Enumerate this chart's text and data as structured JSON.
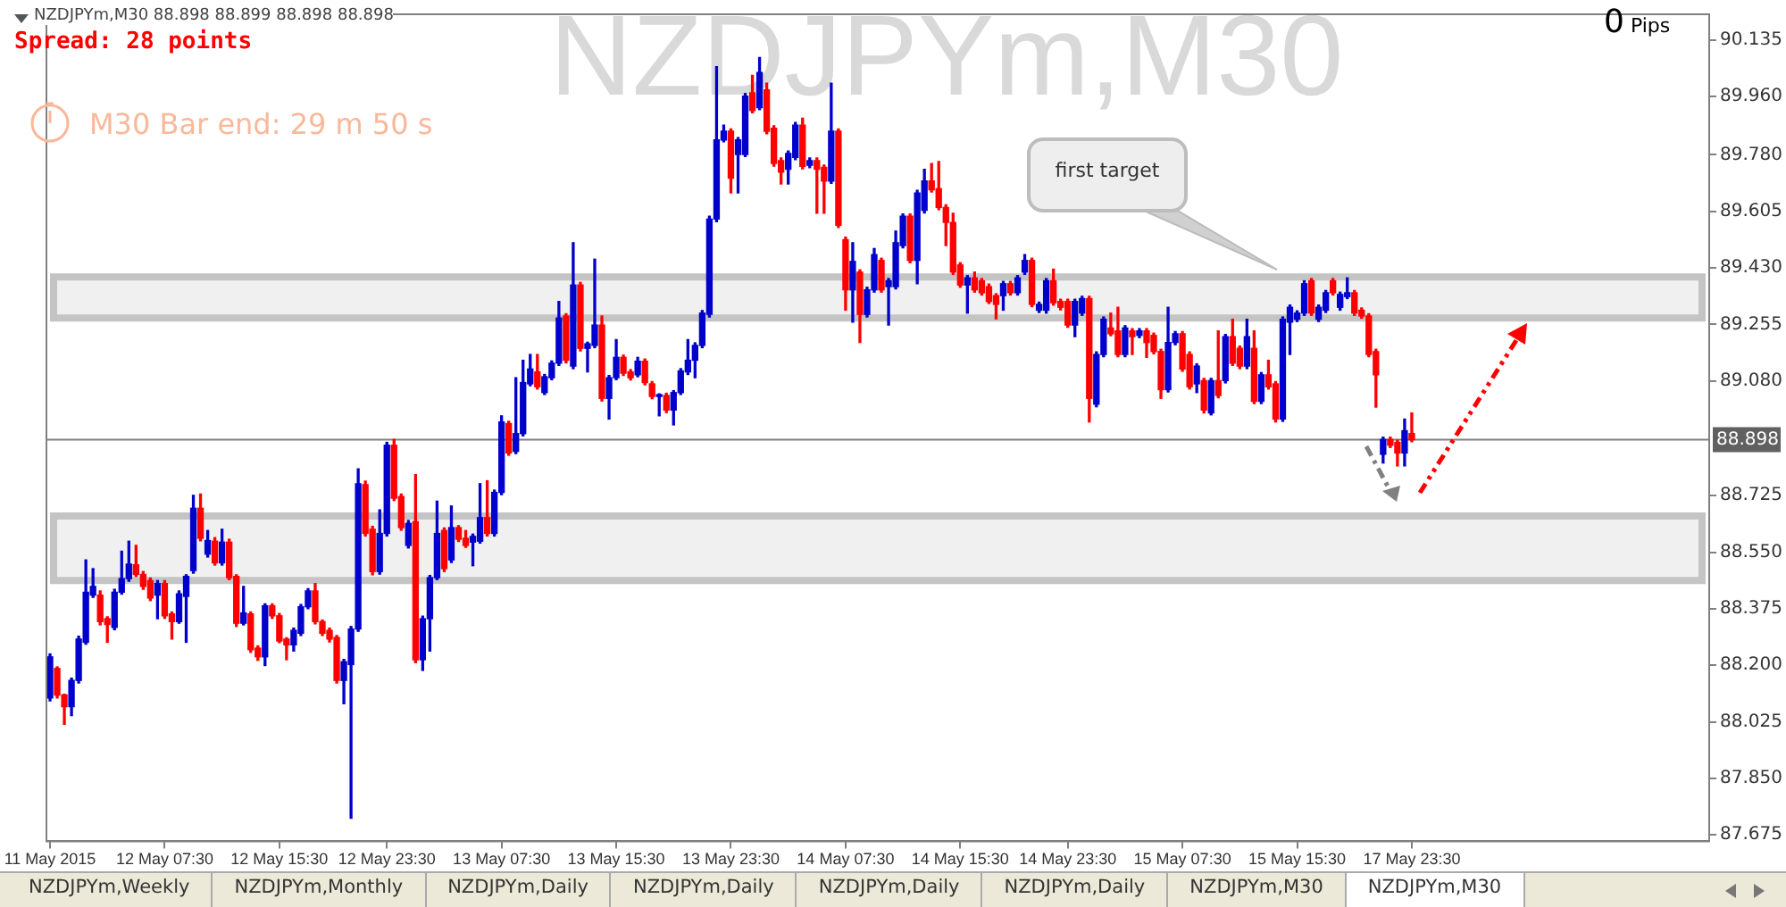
{
  "chart_data": {
    "type": "candlestick",
    "title": "NZDJPYm,M30 88.898 88.899 88.898 88.898",
    "subtitle": "NZDJPYm,M30",
    "categories": [
      "11 May 2015",
      null,
      null,
      null,
      null,
      null,
      null,
      null,
      null,
      null,
      null,
      null,
      null,
      null,
      null,
      null,
      "12 May 07:30",
      null,
      null,
      null,
      null,
      null,
      null,
      null,
      null,
      null,
      null,
      null,
      null,
      null,
      null,
      null,
      "12 May 15:30",
      null,
      null,
      null,
      null,
      null,
      null,
      null,
      null,
      null,
      null,
      null,
      null,
      null,
      null,
      "12 May 23:30",
      null,
      null,
      null,
      null,
      null,
      null,
      null,
      null,
      null,
      null,
      null,
      null,
      null,
      null,
      null,
      "13 May 07:30",
      null,
      null,
      null,
      null,
      null,
      null,
      null,
      null,
      null,
      null,
      null,
      null,
      null,
      null,
      null,
      "13 May 15:30",
      null,
      null,
      null,
      null,
      null,
      null,
      null,
      null,
      null,
      null,
      null,
      null,
      null,
      null,
      null,
      "13 May 23:30",
      null,
      null,
      null,
      null,
      null,
      null,
      null,
      null,
      null,
      null,
      null,
      null,
      null,
      null,
      null,
      "14 May 07:30",
      null,
      null,
      null,
      null,
      null,
      null,
      null,
      null,
      null,
      null,
      null,
      null,
      null,
      null,
      null,
      "14 May 15:30",
      null,
      null,
      null,
      null,
      null,
      null,
      null,
      null,
      null,
      null,
      null,
      null,
      null,
      null,
      "14 May 23:30",
      null,
      null,
      null,
      null,
      null,
      null,
      null,
      null,
      null,
      null,
      null,
      null,
      null,
      null,
      null,
      "15 May 07:30",
      null,
      null,
      null,
      null,
      null,
      null,
      null,
      null,
      null,
      null,
      null,
      null,
      null,
      null,
      null,
      "15 May 15:30",
      null,
      null,
      null,
      null,
      null,
      null,
      null,
      null,
      null,
      null,
      null,
      null,
      null,
      null,
      null,
      "17 May 23:30",
      null,
      null,
      null,
      null,
      null,
      null,
      null,
      null,
      null,
      null,
      null,
      null,
      null,
      null,
      null,
      null,
      null,
      null,
      null,
      null,
      null,
      null,
      null,
      null,
      null,
      null,
      null,
      null,
      null,
      null,
      null,
      null,
      null,
      null,
      null,
      null,
      null,
      null,
      null,
      null,
      null
    ],
    "ohlc": [
      [
        88.099,
        88.235,
        88.09,
        88.226
      ],
      [
        88.19,
        88.195,
        88.099,
        88.108
      ],
      [
        88.108,
        88.11,
        88.017,
        88.072
      ],
      [
        88.072,
        88.16,
        88.044,
        88.153
      ],
      [
        88.153,
        88.29,
        88.145,
        88.281
      ],
      [
        88.271,
        88.526,
        88.265,
        88.426
      ],
      [
        88.417,
        88.499,
        88.41,
        88.444
      ],
      [
        88.417,
        88.43,
        88.325,
        88.335
      ],
      [
        88.344,
        88.35,
        88.271,
        88.326
      ],
      [
        88.317,
        88.435,
        88.31,
        88.426
      ],
      [
        88.426,
        88.553,
        88.42,
        88.468
      ],
      [
        88.468,
        88.584,
        88.46,
        88.513
      ],
      [
        88.511,
        88.571,
        88.475,
        88.481
      ],
      [
        88.481,
        88.49,
        88.435,
        88.444
      ],
      [
        88.462,
        88.47,
        88.4,
        88.408
      ],
      [
        88.417,
        88.462,
        88.344,
        88.453
      ],
      [
        88.453,
        88.462,
        88.345,
        88.353
      ],
      [
        88.359,
        88.365,
        88.281,
        88.335
      ],
      [
        88.335,
        88.43,
        88.33,
        88.421
      ],
      [
        88.413,
        88.48,
        88.271,
        88.475
      ],
      [
        88.493,
        88.726,
        88.485,
        88.686
      ],
      [
        88.686,
        88.73,
        88.585,
        88.593
      ],
      [
        88.544,
        88.617,
        88.535,
        88.586
      ],
      [
        88.584,
        88.595,
        88.51,
        88.517
      ],
      [
        88.517,
        88.621,
        88.51,
        88.581
      ],
      [
        88.581,
        88.59,
        88.465,
        88.471
      ],
      [
        88.475,
        88.48,
        88.32,
        88.33
      ],
      [
        88.33,
        88.444,
        88.325,
        88.362
      ],
      [
        88.359,
        88.365,
        88.24,
        88.248
      ],
      [
        88.253,
        88.26,
        88.215,
        88.226
      ],
      [
        88.226,
        88.39,
        88.199,
        88.384
      ],
      [
        88.384,
        88.39,
        88.345,
        88.353
      ],
      [
        88.353,
        88.36,
        88.27,
        88.275
      ],
      [
        88.281,
        88.285,
        88.217,
        88.263
      ],
      [
        88.263,
        88.315,
        88.244,
        88.308
      ],
      [
        88.299,
        88.388,
        88.292,
        88.381
      ],
      [
        88.381,
        88.437,
        88.375,
        88.43
      ],
      [
        88.43,
        88.453,
        88.328,
        88.335
      ],
      [
        88.335,
        88.34,
        88.292,
        88.299
      ],
      [
        88.308,
        88.315,
        88.272,
        88.281
      ],
      [
        88.286,
        88.292,
        88.145,
        88.153
      ],
      [
        88.153,
        88.218,
        88.081,
        88.211
      ],
      [
        88.202,
        88.32,
        87.726,
        88.312
      ],
      [
        88.312,
        88.808,
        88.305,
        88.762
      ],
      [
        88.759,
        88.77,
        88.6,
        88.608
      ],
      [
        88.621,
        88.63,
        88.48,
        88.49
      ],
      [
        88.49,
        88.681,
        88.482,
        88.608
      ],
      [
        88.608,
        88.89,
        88.6,
        88.881
      ],
      [
        88.881,
        88.899,
        88.71,
        88.717
      ],
      [
        88.722,
        88.73,
        88.618,
        88.626
      ],
      [
        88.571,
        88.648,
        88.563,
        88.639
      ],
      [
        88.644,
        88.79,
        88.208,
        88.217
      ],
      [
        88.217,
        88.352,
        88.184,
        88.344
      ],
      [
        88.344,
        88.478,
        88.244,
        88.471
      ],
      [
        88.471,
        88.708,
        88.465,
        88.608
      ],
      [
        88.617,
        88.625,
        88.49,
        88.499
      ],
      [
        88.526,
        88.693,
        88.518,
        88.626
      ],
      [
        88.626,
        88.632,
        88.583,
        88.59
      ],
      [
        88.593,
        88.617,
        88.565,
        88.571
      ],
      [
        88.581,
        88.606,
        88.508,
        88.599
      ],
      [
        88.584,
        88.762,
        88.578,
        88.657
      ],
      [
        88.657,
        88.771,
        88.6,
        88.608
      ],
      [
        88.608,
        88.742,
        88.6,
        88.735
      ],
      [
        88.735,
        88.972,
        88.728,
        88.953
      ],
      [
        88.948,
        88.955,
        88.85,
        88.857
      ],
      [
        88.862,
        89.09,
        88.855,
        88.917
      ],
      [
        88.917,
        89.144,
        88.91,
        89.075
      ],
      [
        89.071,
        89.162,
        89.065,
        89.117
      ],
      [
        89.108,
        89.162,
        89.055,
        89.062
      ],
      [
        89.044,
        89.1,
        89.038,
        89.093
      ],
      [
        89.09,
        89.142,
        89.084,
        89.135
      ],
      [
        89.135,
        89.326,
        89.128,
        89.275
      ],
      [
        89.281,
        89.288,
        89.136,
        89.144
      ],
      [
        89.126,
        89.508,
        89.118,
        89.377
      ],
      [
        89.377,
        89.385,
        89.173,
        89.181
      ],
      [
        89.181,
        89.2,
        89.108,
        89.195
      ],
      [
        89.19,
        89.457,
        89.183,
        89.253
      ],
      [
        89.253,
        89.281,
        89.018,
        89.026
      ],
      [
        89.026,
        89.097,
        88.962,
        89.09
      ],
      [
        89.09,
        89.208,
        89.084,
        89.153
      ],
      [
        89.153,
        89.16,
        89.097,
        89.104
      ],
      [
        89.108,
        89.115,
        89.083,
        89.09
      ],
      [
        89.099,
        89.153,
        89.093,
        89.141
      ],
      [
        89.141,
        89.148,
        89.068,
        89.075
      ],
      [
        89.071,
        89.078,
        89.025,
        89.032
      ],
      [
        89.032,
        89.04,
        88.972,
        89.035
      ],
      [
        89.035,
        89.042,
        88.982,
        88.99
      ],
      [
        88.99,
        89.05,
        88.944,
        89.044
      ],
      [
        89.044,
        89.118,
        89.038,
        89.111
      ],
      [
        89.108,
        89.208,
        89.1,
        89.144
      ],
      [
        89.144,
        89.198,
        89.09,
        89.19
      ],
      [
        89.19,
        89.298,
        89.183,
        89.29
      ],
      [
        89.286,
        89.59,
        89.278,
        89.581
      ],
      [
        89.581,
        90.053,
        89.573,
        89.826
      ],
      [
        89.826,
        89.872,
        89.82,
        89.853
      ],
      [
        89.853,
        89.86,
        89.662,
        89.708
      ],
      [
        89.781,
        89.833,
        89.662,
        89.826
      ],
      [
        89.781,
        89.97,
        89.775,
        89.962
      ],
      [
        89.972,
        90.026,
        89.91,
        89.917
      ],
      [
        89.926,
        90.081,
        89.92,
        90.035
      ],
      [
        89.981,
        90.002,
        89.845,
        89.853
      ],
      [
        89.862,
        89.87,
        89.745,
        89.753
      ],
      [
        89.762,
        89.77,
        89.69,
        89.726
      ],
      [
        89.735,
        89.792,
        89.69,
        89.784
      ],
      [
        89.772,
        89.88,
        89.765,
        89.872
      ],
      [
        89.872,
        89.893,
        89.737,
        89.744
      ],
      [
        89.748,
        89.77,
        89.74,
        89.762
      ],
      [
        89.762,
        89.77,
        89.599,
        89.735
      ],
      [
        89.741,
        89.748,
        89.599,
        89.699
      ],
      [
        89.699,
        90.002,
        89.692,
        89.853
      ],
      [
        89.853,
        89.86,
        89.555,
        89.562
      ],
      [
        89.517,
        89.525,
        89.299,
        89.362
      ],
      [
        89.362,
        89.508,
        89.262,
        89.45
      ],
      [
        89.417,
        89.424,
        89.199,
        89.286
      ],
      [
        89.286,
        89.37,
        89.278,
        89.362
      ],
      [
        89.362,
        89.49,
        89.355,
        89.471
      ],
      [
        89.453,
        89.46,
        89.355,
        89.362
      ],
      [
        89.372,
        89.397,
        89.253,
        89.39
      ],
      [
        89.372,
        89.544,
        89.365,
        89.508
      ],
      [
        89.499,
        89.597,
        89.492,
        89.59
      ],
      [
        89.59,
        89.597,
        89.446,
        89.453
      ],
      [
        89.453,
        89.67,
        89.381,
        89.662
      ],
      [
        89.608,
        89.735,
        89.6,
        89.699
      ],
      [
        89.699,
        89.753,
        89.665,
        89.672
      ],
      [
        89.675,
        89.759,
        89.61,
        89.617
      ],
      [
        89.617,
        89.625,
        89.499,
        89.571
      ],
      [
        89.571,
        89.599,
        89.41,
        89.417
      ],
      [
        89.439,
        89.446,
        89.37,
        89.377
      ],
      [
        89.377,
        89.406,
        89.29,
        89.399
      ],
      [
        89.399,
        89.417,
        89.355,
        89.362
      ],
      [
        89.39,
        89.397,
        89.346,
        89.353
      ],
      [
        89.372,
        89.38,
        89.32,
        89.326
      ],
      [
        89.344,
        89.35,
        89.272,
        89.317
      ],
      [
        89.344,
        89.388,
        89.299,
        89.381
      ],
      [
        89.381,
        89.388,
        89.346,
        89.353
      ],
      [
        89.353,
        89.406,
        89.346,
        89.399
      ],
      [
        89.417,
        89.471,
        89.41,
        89.453
      ],
      [
        89.453,
        89.46,
        89.31,
        89.317
      ],
      [
        89.299,
        89.324,
        89.292,
        89.317
      ],
      [
        89.299,
        89.397,
        89.29,
        89.39
      ],
      [
        89.39,
        89.426,
        89.315,
        89.322
      ],
      [
        89.326,
        89.333,
        89.3,
        89.308
      ],
      [
        89.326,
        89.333,
        89.246,
        89.253
      ],
      [
        89.253,
        89.333,
        89.217,
        89.326
      ],
      [
        89.29,
        89.342,
        89.283,
        89.335
      ],
      [
        89.335,
        89.342,
        88.953,
        89.026
      ],
      [
        89.008,
        89.17,
        89.0,
        89.162
      ],
      [
        89.162,
        89.278,
        89.155,
        89.271
      ],
      [
        89.244,
        89.29,
        89.22,
        89.226
      ],
      [
        89.235,
        89.308,
        89.155,
        89.162
      ],
      [
        89.162,
        89.251,
        89.155,
        89.244
      ],
      [
        89.235,
        89.242,
        89.162,
        89.217
      ],
      [
        89.221,
        89.242,
        89.214,
        89.235
      ],
      [
        89.235,
        89.242,
        89.153,
        89.199
      ],
      [
        89.221,
        89.228,
        89.164,
        89.171
      ],
      [
        89.171,
        89.178,
        89.026,
        89.053
      ],
      [
        89.053,
        89.308,
        89.046,
        89.199
      ],
      [
        89.199,
        89.233,
        89.192,
        89.226
      ],
      [
        89.226,
        89.233,
        89.11,
        89.117
      ],
      [
        89.162,
        89.17,
        89.055,
        89.062
      ],
      [
        89.071,
        89.133,
        89.044,
        89.126
      ],
      [
        89.081,
        89.088,
        88.981,
        88.99
      ],
      [
        88.981,
        89.088,
        88.975,
        89.081
      ],
      [
        89.081,
        89.235,
        89.028,
        89.035
      ],
      [
        89.081,
        89.224,
        89.074,
        89.217
      ],
      [
        89.217,
        89.271,
        89.128,
        89.135
      ],
      [
        89.181,
        89.188,
        89.118,
        89.126
      ],
      [
        89.126,
        89.271,
        89.118,
        89.217
      ],
      [
        89.181,
        89.235,
        89.01,
        89.017
      ],
      [
        89.017,
        89.106,
        89.01,
        89.099
      ],
      [
        89.099,
        89.144,
        89.055,
        89.062
      ],
      [
        89.071,
        89.078,
        88.953,
        88.962
      ],
      [
        88.962,
        89.278,
        88.955,
        89.271
      ],
      [
        89.262,
        89.315,
        89.162,
        89.308
      ],
      [
        89.271,
        89.297,
        89.264,
        89.29
      ],
      [
        89.29,
        89.39,
        89.283,
        89.381
      ],
      [
        89.39,
        89.397,
        89.283,
        89.29
      ],
      [
        89.271,
        89.315,
        89.264,
        89.308
      ],
      [
        89.299,
        89.36,
        89.292,
        89.353
      ],
      [
        89.39,
        89.397,
        89.346,
        89.353
      ],
      [
        89.308,
        89.355,
        89.299,
        89.348
      ],
      [
        89.341,
        89.399,
        89.335,
        89.353
      ],
      [
        89.353,
        89.36,
        89.283,
        89.29
      ],
      [
        89.299,
        89.306,
        89.274,
        89.281
      ],
      [
        89.281,
        89.288,
        89.155,
        89.162
      ],
      [
        89.171,
        89.178,
        88.999,
        89.099
      ],
      [
        88.853,
        88.906,
        88.826,
        88.899
      ],
      [
        88.899,
        88.906,
        88.874,
        88.881
      ],
      [
        88.89,
        88.897,
        88.817,
        88.857
      ],
      [
        88.857,
        88.962,
        88.817,
        88.926
      ],
      [
        88.917,
        88.981,
        88.892,
        88.898
      ],
      null,
      null,
      null,
      null,
      null,
      null,
      null,
      null,
      null,
      null,
      null,
      null,
      null,
      null,
      null,
      null,
      null,
      null,
      null,
      null,
      null,
      null,
      null,
      null,
      null,
      null,
      null,
      null,
      null,
      null,
      null,
      null,
      null,
      null,
      null,
      null,
      null,
      null,
      null,
      null,
      null
    ],
    "colors": [
      "#0000cc",
      "#ff0000",
      "#ff0000",
      "#0000cc",
      "#0000cc",
      "#0000cc",
      "#0000cc",
      "#ff0000",
      "#ff0000",
      "#0000cc",
      "#0000cc",
      "#0000cc",
      "#ff0000",
      "#ff0000",
      "#ff0000",
      "#0000cc",
      "#ff0000",
      "#ff0000",
      "#0000cc",
      "#0000cc",
      "#0000cc",
      "#ff0000",
      "#0000cc",
      "#ff0000",
      "#0000cc",
      "#ff0000",
      "#ff0000",
      "#0000cc",
      "#ff0000",
      "#ff0000",
      "#0000cc",
      "#ff0000",
      "#ff0000",
      "#ff0000",
      "#0000cc",
      "#0000cc",
      "#0000cc",
      "#ff0000",
      "#ff0000",
      "#ff0000",
      "#ff0000",
      "#0000cc",
      "#0000cc",
      "#0000cc",
      "#ff0000",
      "#ff0000",
      "#0000cc",
      "#0000cc",
      "#ff0000",
      "#ff0000",
      "#0000cc",
      "#ff0000",
      "#0000cc",
      "#0000cc",
      "#0000cc",
      "#ff0000",
      "#0000cc",
      "#ff0000",
      "#ff0000",
      "#0000cc",
      "#0000cc",
      "#ff0000",
      "#0000cc",
      "#0000cc",
      "#ff0000",
      "#0000cc",
      "#0000cc",
      "#0000cc",
      "#ff0000",
      "#0000cc",
      "#0000cc",
      "#0000cc",
      "#ff0000",
      "#0000cc",
      "#ff0000",
      "#0000cc",
      "#0000cc",
      "#ff0000",
      "#0000cc",
      "#0000cc",
      "#ff0000",
      "#ff0000",
      "#0000cc",
      "#ff0000",
      "#ff0000",
      "#0000cc",
      "#ff0000",
      "#0000cc",
      "#0000cc",
      "#0000cc",
      "#0000cc",
      "#0000cc",
      "#0000cc",
      "#0000cc",
      "#0000cc",
      "#ff0000",
      "#0000cc",
      "#0000cc",
      "#ff0000",
      "#0000cc",
      "#ff0000",
      "#ff0000",
      "#ff0000",
      "#0000cc",
      "#0000cc",
      "#ff0000",
      "#0000cc",
      "#ff0000",
      "#ff0000",
      "#0000cc",
      "#ff0000",
      "#ff0000",
      "#0000cc",
      "#ff0000",
      "#0000cc",
      "#0000cc",
      "#ff0000",
      "#0000cc",
      "#0000cc",
      "#0000cc",
      "#ff0000",
      "#0000cc",
      "#0000cc",
      "#ff0000",
      "#ff0000",
      "#ff0000",
      "#ff0000",
      "#ff0000",
      "#0000cc",
      "#ff0000",
      "#ff0000",
      "#ff0000",
      "#ff0000",
      "#0000cc",
      "#ff0000",
      "#0000cc",
      "#0000cc",
      "#ff0000",
      "#0000cc",
      "#0000cc",
      "#ff0000",
      "#ff0000",
      "#ff0000",
      "#0000cc",
      "#0000cc",
      "#ff0000",
      "#0000cc",
      "#0000cc",
      "#ff0000",
      "#ff0000",
      "#0000cc",
      "#ff0000",
      "#0000cc",
      "#ff0000",
      "#ff0000",
      "#ff0000",
      "#0000cc",
      "#0000cc",
      "#ff0000",
      "#ff0000",
      "#0000cc",
      "#ff0000",
      "#0000cc",
      "#ff0000",
      "#0000cc",
      "#ff0000",
      "#ff0000",
      "#0000cc",
      "#ff0000",
      "#0000cc",
      "#ff0000",
      "#ff0000",
      "#0000cc",
      "#0000cc",
      "#0000cc",
      "#0000cc",
      "#ff0000",
      "#0000cc",
      "#0000cc",
      "#ff0000",
      "#0000cc",
      "#0000cc",
      "#ff0000",
      "#ff0000",
      "#ff0000",
      "#ff0000",
      "#0000cc",
      "#ff0000",
      "#ff0000",
      "#0000cc",
      "#ff0000",
      null,
      null,
      null,
      null,
      null,
      null,
      null,
      null,
      null,
      null,
      null,
      null,
      null,
      null,
      null,
      null,
      null,
      null,
      null,
      null,
      null,
      null,
      null,
      null,
      null,
      null,
      null,
      null,
      null,
      null,
      null,
      null,
      null,
      null,
      null,
      null,
      null,
      null,
      null,
      null,
      null
    ],
    "ylim": [
      87.655,
      90.215
    ],
    "yticks": [
      {
        "value": 90.135,
        "label": "90.135"
      },
      {
        "value": 89.96,
        "label": "89.960"
      },
      {
        "value": 89.78,
        "label": "89.780"
      },
      {
        "value": 89.605,
        "label": "89.605"
      },
      {
        "value": 89.43,
        "label": "89.430"
      },
      {
        "value": 89.255,
        "label": "89.255"
      },
      {
        "value": 89.08,
        "label": "89.080"
      },
      {
        "value": 88.725,
        "label": "88.725"
      },
      {
        "value": 88.55,
        "label": "88.550"
      },
      {
        "value": 88.375,
        "label": "88.375"
      },
      {
        "value": 88.2,
        "label": "88.200"
      },
      {
        "value": 88.025,
        "label": "88.025"
      },
      {
        "value": 87.85,
        "label": "87.850"
      },
      {
        "value": 87.675,
        "label": "87.675"
      }
    ],
    "ref_lines": [
      {
        "axis": "y",
        "value": 88.898,
        "label": "88.898",
        "color": "#808080"
      }
    ],
    "bands": [
      {
        "axis": "y",
        "from": 89.275,
        "to": 89.402,
        "color": "#c4c4c4"
      },
      {
        "axis": "y",
        "from": 88.462,
        "to": 88.662,
        "color": "#c4c4c4"
      }
    ],
    "annotations": [
      "Spread: 28 points",
      "M30 Bar end: 29 m 50 s",
      "0 Pips",
      "first target",
      "NZDJPYm,Weekly",
      "NZDJPYm,Monthly",
      "NZDJPYm,Daily",
      "NZDJPYm,Daily",
      "NZDJPYm,Daily",
      "NZDJPYm,Daily",
      "NZDJPYm,M30",
      "NZDJPYm,M30"
    ]
  }
}
